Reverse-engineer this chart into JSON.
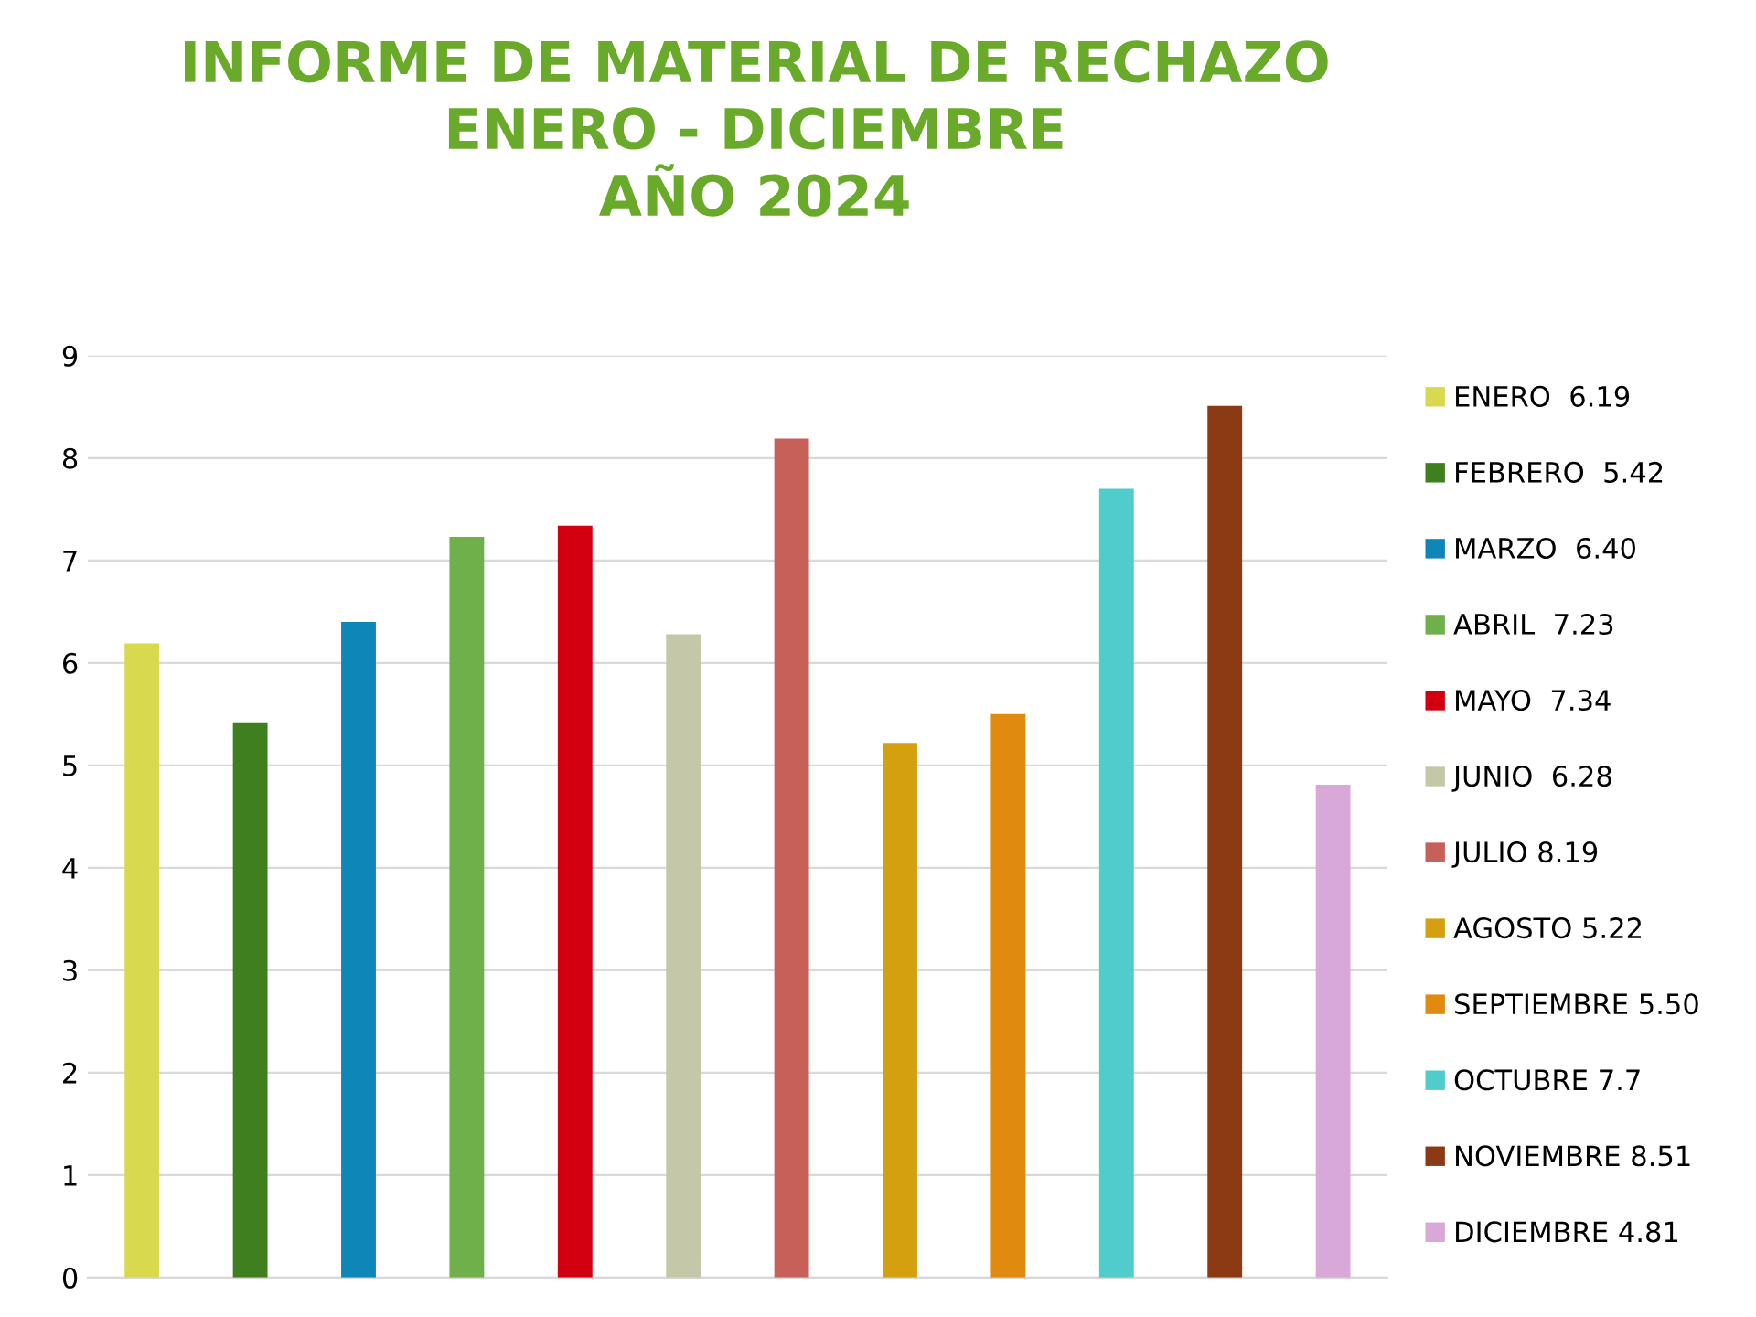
{
  "chart_data": {
    "type": "bar",
    "title": "INFORME DE MATERIAL DE RECHAZO\nENERO - DICIEMBRE\nAÑO 2024",
    "categories": [
      null,
      null,
      null,
      null,
      null,
      null,
      null,
      null,
      null,
      null,
      null,
      null
    ],
    "series": [
      {
        "name": "ENERO  6.19",
        "color": "#d9d950",
        "values": [
          6.19,
          null,
          null,
          null,
          null,
          null,
          null,
          null,
          null,
          null,
          null,
          null
        ]
      },
      {
        "name": "FEBRERO  5.42",
        "color": "#3f7f1f",
        "values": [
          null,
          5.42,
          null,
          null,
          null,
          null,
          null,
          null,
          null,
          null,
          null,
          null
        ]
      },
      {
        "name": "MARZO  6.40",
        "color": "#0e86b8",
        "values": [
          null,
          null,
          6.4,
          null,
          null,
          null,
          null,
          null,
          null,
          null,
          null,
          null
        ]
      },
      {
        "name": "ABRIL  7.23",
        "color": "#6fb04a",
        "values": [
          null,
          null,
          null,
          7.23,
          null,
          null,
          null,
          null,
          null,
          null,
          null,
          null
        ]
      },
      {
        "name": "MAYO  7.34",
        "color": "#d00010",
        "values": [
          null,
          null,
          null,
          null,
          7.34,
          null,
          null,
          null,
          null,
          null,
          null,
          null
        ]
      },
      {
        "name": "JUNIO  6.28",
        "color": "#c5c8a8",
        "values": [
          null,
          null,
          null,
          null,
          null,
          6.28,
          null,
          null,
          null,
          null,
          null,
          null
        ]
      },
      {
        "name": "JULIO 8.19",
        "color": "#c8605a",
        "values": [
          null,
          null,
          null,
          null,
          null,
          null,
          8.19,
          null,
          null,
          null,
          null,
          null
        ]
      },
      {
        "name": "AGOSTO 5.22",
        "color": "#d4a010",
        "values": [
          null,
          null,
          null,
          null,
          null,
          null,
          null,
          5.22,
          null,
          null,
          null,
          null
        ]
      },
      {
        "name": "SEPTIEMBRE 5.50",
        "color": "#e08a10",
        "values": [
          null,
          null,
          null,
          null,
          null,
          null,
          null,
          null,
          5.5,
          null,
          null,
          null
        ]
      },
      {
        "name": "OCTUBRE 7.7",
        "color": "#50cccc",
        "values": [
          null,
          null,
          null,
          null,
          null,
          null,
          null,
          null,
          null,
          7.7,
          null,
          null
        ]
      },
      {
        "name": "NOVIEMBRE 8.51",
        "color": "#8b3a14",
        "values": [
          null,
          null,
          null,
          null,
          null,
          null,
          null,
          null,
          null,
          null,
          8.51,
          null
        ]
      },
      {
        "name": "DICIEMBRE 4.81",
        "color": "#d8a8d8",
        "values": [
          null,
          null,
          null,
          null,
          null,
          null,
          null,
          null,
          null,
          null,
          null,
          4.81
        ]
      }
    ],
    "ylim": [
      0,
      9
    ],
    "yticks": [
      0,
      1,
      2,
      3,
      4,
      5,
      6,
      7,
      8,
      9
    ],
    "grid": "y",
    "legend": "right",
    "tick_labels": "y"
  }
}
